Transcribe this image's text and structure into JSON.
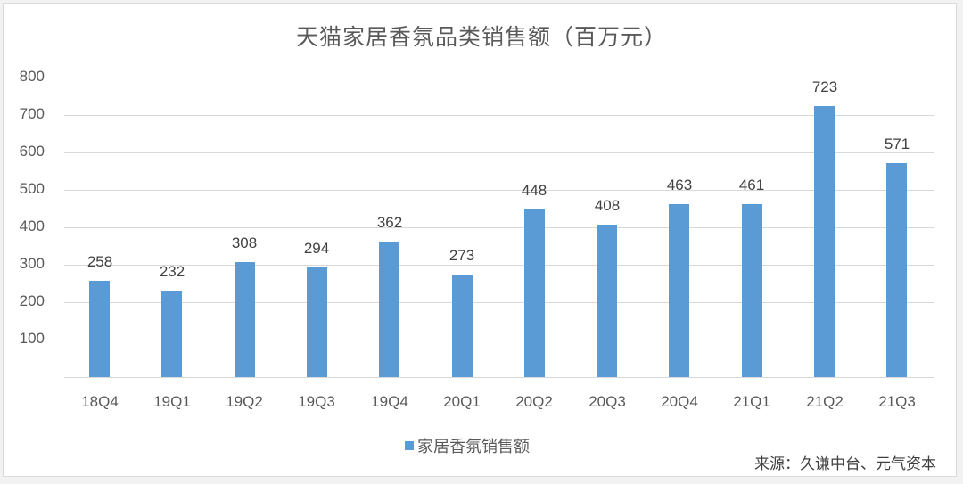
{
  "chart_data": {
    "type": "bar",
    "title": "天猫家居香氛品类销售额（百万元）",
    "categories": [
      "18Q4",
      "19Q1",
      "19Q2",
      "19Q3",
      "19Q4",
      "20Q1",
      "20Q2",
      "20Q3",
      "20Q4",
      "21Q1",
      "21Q2",
      "21Q3"
    ],
    "series": [
      {
        "name": "家居香氛销售额",
        "values": [
          258,
          232,
          308,
          294,
          362,
          273,
          448,
          408,
          463,
          461,
          723,
          571
        ],
        "color": "#5b9bd5"
      }
    ],
    "xlabel": "",
    "ylabel": "",
    "ylim": [
      0,
      800
    ],
    "yticks": [
      100,
      200,
      300,
      400,
      500,
      600,
      700,
      800
    ],
    "grid": true,
    "legend_position": "bottom",
    "data_labels": true
  },
  "legend": {
    "label": "家居香氛销售额"
  },
  "source": "来源：久谦中台、元气资本"
}
